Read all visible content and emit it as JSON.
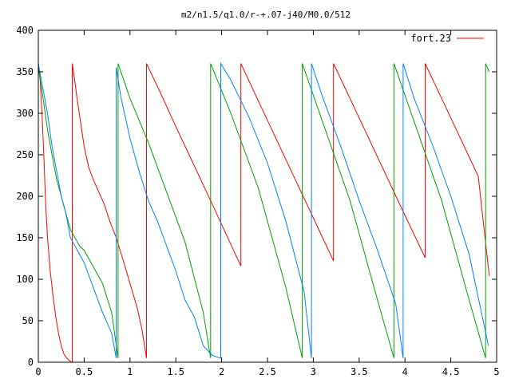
{
  "chart_data": {
    "type": "line",
    "title": "m2/n1.5/q1.0/r-+.07-j40/M0.0/512",
    "xlabel": "",
    "ylabel": "",
    "xlim": [
      0,
      5
    ],
    "ylim": [
      0,
      400
    ],
    "grid": false,
    "legend_position": "top-right",
    "x_ticks": [
      0,
      0.5,
      1,
      1.5,
      2,
      2.5,
      3,
      3.5,
      4,
      4.5,
      5
    ],
    "x_tick_labels": [
      "0",
      "0.5",
      "1",
      "1.5",
      "2",
      "2.5",
      "3",
      "3.5",
      "4",
      "4.5",
      "5"
    ],
    "y_ticks": [
      0,
      50,
      100,
      150,
      200,
      250,
      300,
      350,
      400
    ],
    "y_tick_labels": [
      "0",
      "50",
      "100",
      "150",
      "200",
      "250",
      "300",
      "350",
      "400"
    ],
    "series": [
      {
        "name": "fort.23",
        "color": "#ff0000",
        "x": [
          0.0,
          0.02,
          0.04,
          0.06,
          0.08,
          0.1,
          0.13,
          0.16,
          0.19,
          0.22,
          0.25,
          0.28,
          0.31,
          0.34,
          0.36,
          0.37,
          0.37,
          0.39,
          0.42,
          0.46,
          0.5,
          0.55,
          0.6,
          0.66,
          0.72,
          0.78,
          0.85,
          0.92,
          1.0,
          1.08,
          1.13,
          1.18,
          1.18,
          1.31,
          1.5,
          1.7,
          1.9,
          2.1,
          2.21,
          2.21,
          2.4,
          2.6,
          2.8,
          3.0,
          3.22,
          3.22,
          3.4,
          3.6,
          3.8,
          4.0,
          4.22,
          4.22,
          4.4,
          4.6,
          4.8,
          4.92
        ],
        "y": [
          360,
          340,
          300,
          250,
          190,
          150,
          110,
          80,
          55,
          35,
          20,
          10,
          5,
          2,
          0,
          0,
          360,
          345,
          320,
          290,
          260,
          235,
          220,
          205,
          190,
          170,
          150,
          125,
          95,
          65,
          40,
          5,
          360,
          330,
          284,
          237,
          190,
          142,
          116,
          360,
          315,
          268,
          221,
          174,
          122,
          360,
          318,
          271,
          224,
          177,
          126,
          360,
          318,
          271,
          224,
          104
        ]
      },
      {
        "name": "",
        "color": "#00a000",
        "x": [
          0.0,
          0.05,
          0.1,
          0.15,
          0.2,
          0.25,
          0.3,
          0.35,
          0.4,
          0.45,
          0.5,
          0.55,
          0.6,
          0.7,
          0.8,
          0.87,
          0.87,
          1.0,
          1.2,
          1.4,
          1.6,
          1.8,
          1.88,
          1.88,
          2.1,
          2.4,
          2.7,
          2.88,
          2.88,
          3.1,
          3.4,
          3.7,
          3.88,
          3.88,
          4.1,
          4.4,
          4.7,
          4.88,
          4.88,
          4.92
        ],
        "y": [
          355,
          320,
          280,
          250,
          220,
          200,
          180,
          160,
          150,
          140,
          135,
          125,
          115,
          95,
          60,
          5,
          360,
          318,
          265,
          205,
          145,
          60,
          5,
          360,
          300,
          210,
          90,
          5,
          360,
          290,
          195,
          75,
          5,
          360,
          290,
          195,
          75,
          5,
          360,
          350
        ]
      },
      {
        "name": "",
        "color": "#0080ff",
        "x": [
          0.0,
          0.05,
          0.1,
          0.15,
          0.2,
          0.25,
          0.3,
          0.35,
          0.4,
          0.5,
          0.6,
          0.7,
          0.8,
          0.85,
          0.85,
          0.9,
          1.0,
          1.1,
          1.2,
          1.3,
          1.4,
          1.5,
          1.6,
          1.7,
          1.8,
          1.9,
          1.99,
          1.99,
          2.1,
          2.3,
          2.5,
          2.7,
          2.9,
          2.98,
          2.98,
          3.1,
          3.3,
          3.5,
          3.7,
          3.9,
          3.98,
          3.98,
          4.1,
          4.3,
          4.5,
          4.7,
          4.91
        ],
        "y": [
          360,
          330,
          300,
          260,
          230,
          200,
          180,
          150,
          140,
          120,
          90,
          60,
          35,
          5,
          355,
          320,
          270,
          230,
          195,
          170,
          140,
          110,
          75,
          55,
          20,
          8,
          5,
          360,
          340,
          295,
          240,
          170,
          85,
          5,
          360,
          320,
          260,
          195,
          135,
          70,
          5,
          360,
          318,
          262,
          200,
          130,
          20
        ]
      }
    ]
  }
}
